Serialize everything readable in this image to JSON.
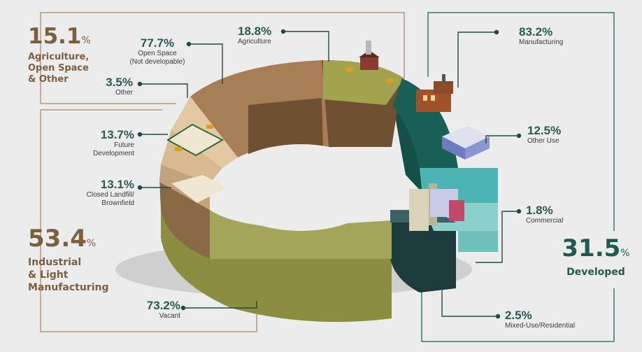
{
  "chart_data": {
    "type": "donut",
    "groups": [
      {
        "pct": "15.1",
        "unit": "%",
        "title_lines": [
          "Agriculture,",
          "Open Space",
          "& Other"
        ],
        "color": "#7b6040"
      },
      {
        "pct": "53.4",
        "unit": "%",
        "title_lines": [
          "Industrial",
          "& Light",
          "Manufacturing"
        ],
        "color": "#7b6040"
      },
      {
        "pct": "31.5",
        "unit": "%",
        "title_lines": [
          "Developed"
        ],
        "color": "#1f5a4e"
      }
    ],
    "segments": [
      {
        "value": "77.7%",
        "label_lines": [
          "Open Space",
          "(Not developable)"
        ]
      },
      {
        "value": "18.8%",
        "label_lines": [
          "Agriculture"
        ]
      },
      {
        "value": "3.5%",
        "label_lines": [
          "Other"
        ]
      },
      {
        "value": "83.2%",
        "label_lines": [
          "Manufacturing"
        ]
      },
      {
        "value": "12.5%",
        "label_lines": [
          "Other Use"
        ]
      },
      {
        "value": "1.8%",
        "label_lines": [
          "Commercial"
        ]
      },
      {
        "value": "2.5%",
        "label_lines": [
          "Mixed-Use/Residential"
        ]
      },
      {
        "value": "13.7%",
        "label_lines": [
          "Future",
          "Development"
        ]
      },
      {
        "value": "13.1%",
        "label_lines": [
          "Closed Landfill/",
          "Brownfield"
        ]
      },
      {
        "value": "73.2%",
        "label_lines": [
          "Vacant"
        ]
      }
    ]
  },
  "colors": {
    "brown": "#7b6040",
    "green": "#1f5a4e",
    "olive": "#9a9c4a",
    "teal": "#1a5f55",
    "cyan": "#4cb5b3",
    "slate": "#27474a",
    "tan": "#d9b98f"
  }
}
